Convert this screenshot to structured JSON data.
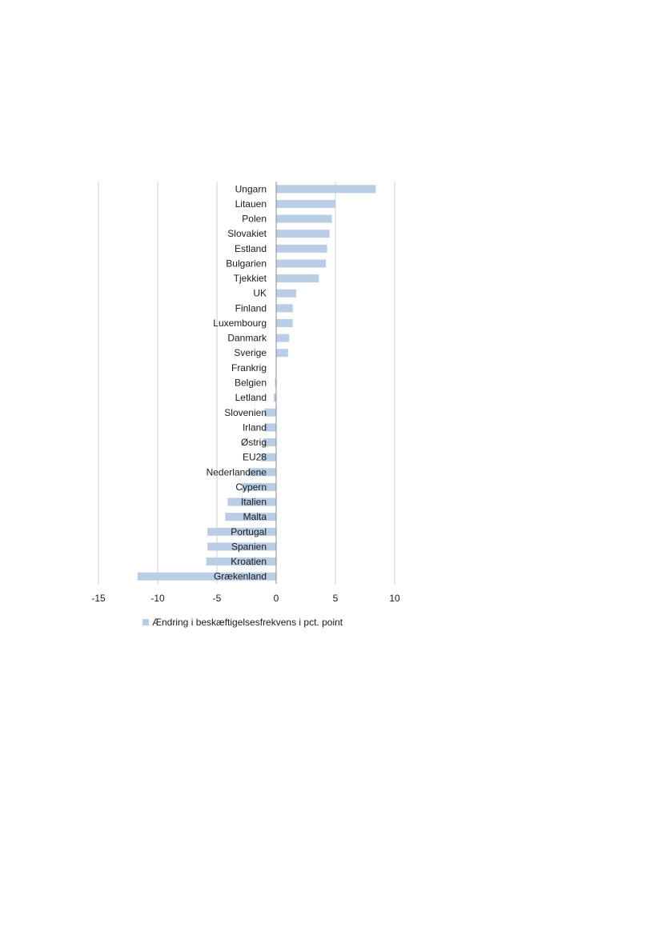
{
  "chart_data": {
    "type": "bar",
    "orientation": "horizontal",
    "title": "",
    "xlabel": "",
    "ylabel": "",
    "xlim": [
      -15,
      10
    ],
    "x_ticks": [
      "-15",
      "-10",
      "-5",
      "0",
      "5",
      "10"
    ],
    "grid": true,
    "legend_position": "bottom",
    "bar_color": "#b9cde5",
    "categories": [
      "Ungarn",
      "Litauen",
      "Polen",
      "Slovakiet",
      "Estland",
      "Bulgarien",
      "Tjekkiet",
      "UK",
      "Finland",
      "Luxembourg",
      "Danmark",
      "Sverige",
      "Frankrig",
      "Belgien",
      "Letland",
      "Slovenien",
      "Irland",
      "Østrig",
      "EU28",
      "Nederlandene",
      "Cypern",
      "Italien",
      "Malta",
      "Portugal",
      "Spanien",
      "Kroatien",
      "Grækenland"
    ],
    "series": [
      {
        "name": "Ændring i beskæftigelsesfrekvens i pct. point",
        "values": [
          8.4,
          5.0,
          4.7,
          4.5,
          4.3,
          4.2,
          3.6,
          1.7,
          1.4,
          1.4,
          1.1,
          1.0,
          0.0,
          -0.1,
          -0.2,
          -1.0,
          -1.0,
          -1.1,
          -1.3,
          -2.4,
          -2.9,
          -4.1,
          -4.3,
          -5.8,
          -5.8,
          -5.9,
          -11.7
        ]
      }
    ]
  }
}
